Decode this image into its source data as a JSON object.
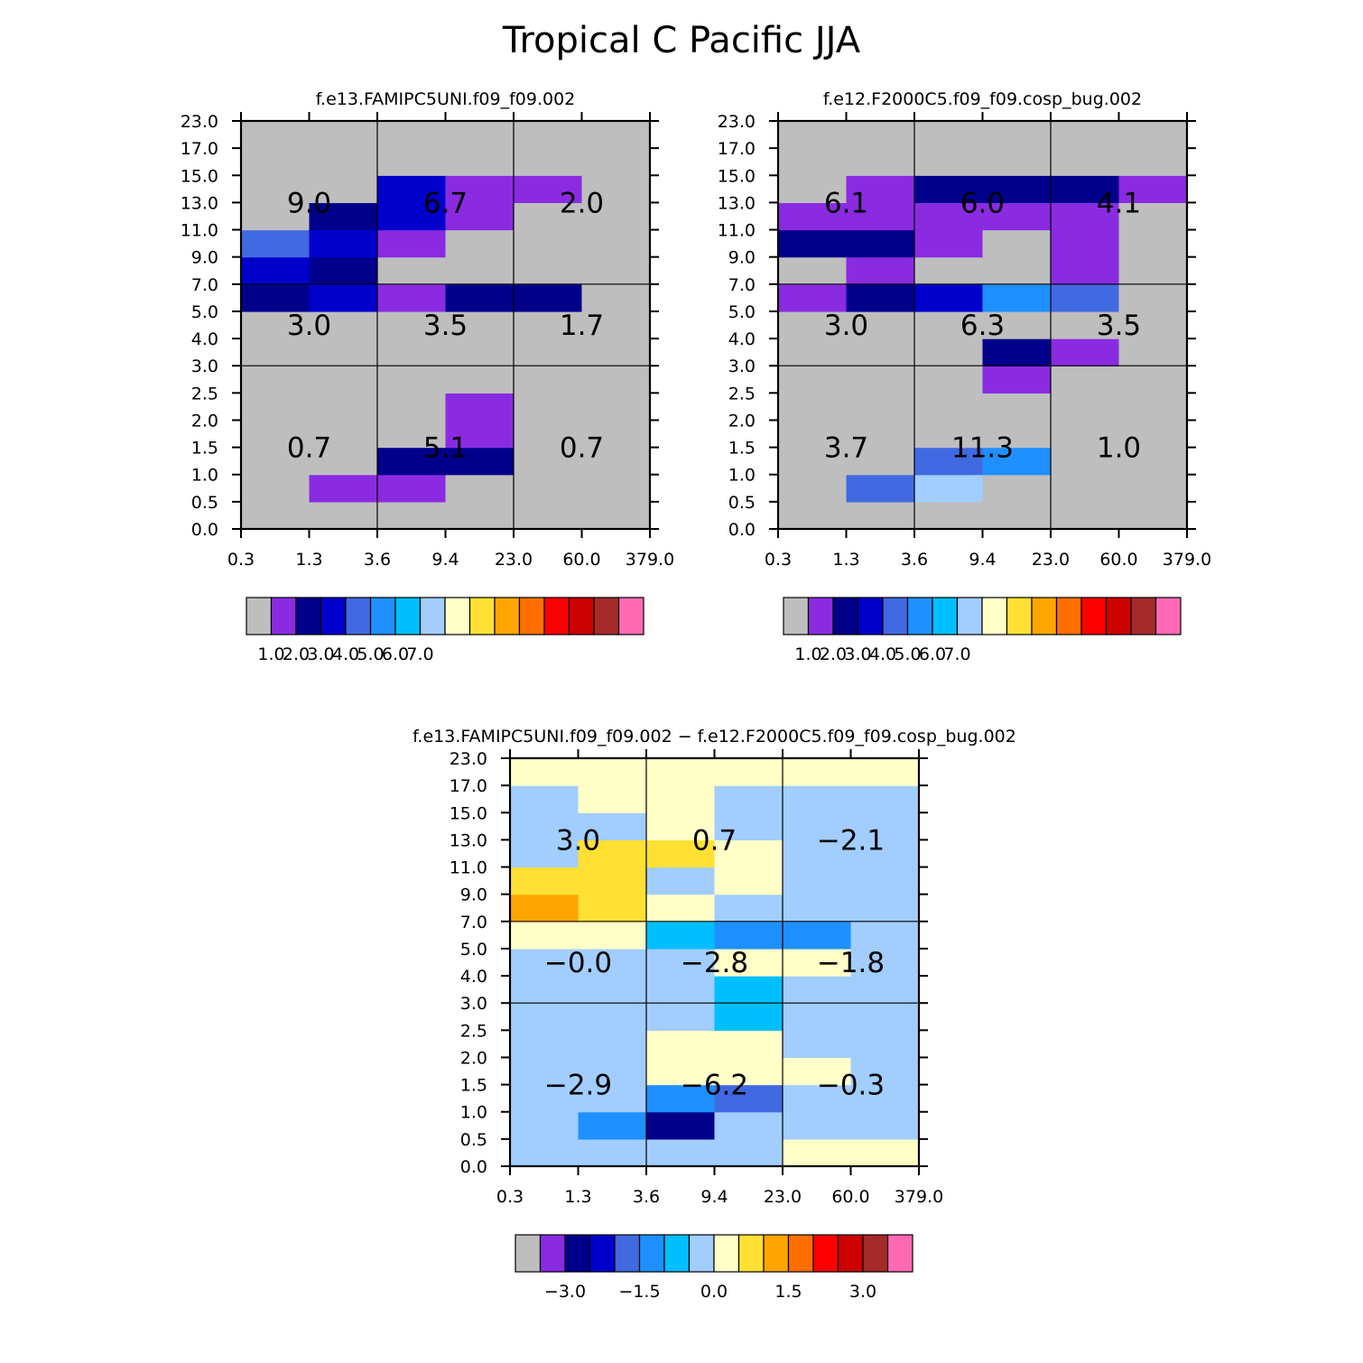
{
  "title": "Tropical C Pacific JJA",
  "palette": [
    "#bebebe",
    "#8a2be2",
    "#00008b",
    "#0000cd",
    "#4169e1",
    "#1e90ff",
    "#00bfff",
    "#a2cdff",
    "#ffffc8",
    "#ffe033",
    "#ffa500",
    "#ff6f00",
    "#ff0000",
    "#cd0000",
    "#a52a2a",
    "#ff69b4"
  ],
  "chart_data": [
    {
      "type": "heatmap",
      "title": "f.e13.FAMIPC5UNI.f09_f09.002",
      "x_ticks": [
        "0.3",
        "1.3",
        "3.6",
        "9.4",
        "23.0",
        "60.0",
        "379.0"
      ],
      "y_ticks": [
        "0.0",
        "0.5",
        "1.0",
        "1.5",
        "2.0",
        "2.5",
        "3.0",
        "4.0",
        "5.0",
        "7.0",
        "9.0",
        "11.0",
        "13.0",
        "15.0",
        "17.0",
        "23.0"
      ],
      "cells": [
        [
          0,
          0,
          0,
          0,
          0,
          0
        ],
        [
          0,
          1,
          1,
          0,
          0,
          0
        ],
        [
          0,
          0,
          2,
          2,
          0,
          0
        ],
        [
          0,
          0,
          0,
          1,
          0,
          0
        ],
        [
          0,
          0,
          0,
          1,
          0,
          0
        ],
        [
          0,
          0,
          0,
          0,
          0,
          0
        ],
        [
          0,
          0,
          0,
          0,
          0,
          0
        ],
        [
          0,
          0,
          0,
          0,
          0,
          0
        ],
        [
          2,
          3,
          1,
          2,
          2,
          0
        ],
        [
          3,
          2,
          0,
          0,
          0,
          0
        ],
        [
          4,
          3,
          1,
          0,
          0,
          0
        ],
        [
          0,
          2,
          3,
          1,
          0,
          0
        ],
        [
          0,
          0,
          3,
          1,
          1,
          0
        ],
        [
          0,
          0,
          0,
          0,
          0,
          0
        ],
        [
          0,
          0,
          0,
          0,
          0,
          0
        ]
      ],
      "region_labels": [
        [
          "0.7",
          "5.1",
          "0.7"
        ],
        [
          "3.0",
          "3.5",
          "1.7"
        ],
        [
          "9.0",
          "6.7",
          "2.0"
        ]
      ],
      "colorbar_labels": [
        "1.0",
        "2.0",
        "3.0",
        "4.0",
        "5.0",
        "6.0",
        "7.0"
      ]
    },
    {
      "type": "heatmap",
      "title": "f.e12.F2000C5.f09_f09.cosp_bug.002",
      "x_ticks": [
        "0.3",
        "1.3",
        "3.6",
        "9.4",
        "23.0",
        "60.0",
        "379.0"
      ],
      "y_ticks": [
        "0.0",
        "0.5",
        "1.0",
        "1.5",
        "2.0",
        "2.5",
        "3.0",
        "4.0",
        "5.0",
        "7.0",
        "9.0",
        "11.0",
        "13.0",
        "15.0",
        "17.0",
        "23.0"
      ],
      "cells": [
        [
          0,
          0,
          0,
          0,
          0,
          0
        ],
        [
          0,
          4,
          7,
          0,
          0,
          0
        ],
        [
          0,
          0,
          4,
          5,
          0,
          0
        ],
        [
          0,
          0,
          0,
          0,
          0,
          0
        ],
        [
          0,
          0,
          0,
          0,
          0,
          0
        ],
        [
          0,
          0,
          0,
          1,
          0,
          0
        ],
        [
          0,
          0,
          0,
          2,
          1,
          0
        ],
        [
          0,
          0,
          0,
          0,
          0,
          0
        ],
        [
          1,
          2,
          3,
          5,
          4,
          0
        ],
        [
          0,
          1,
          0,
          0,
          1,
          0
        ],
        [
          2,
          2,
          1,
          0,
          1,
          0
        ],
        [
          1,
          1,
          1,
          1,
          1,
          0
        ],
        [
          0,
          1,
          2,
          2,
          2,
          1
        ],
        [
          0,
          0,
          0,
          0,
          0,
          0
        ],
        [
          0,
          0,
          0,
          0,
          0,
          0
        ]
      ],
      "region_labels": [
        [
          "3.7",
          "11.3",
          "1.0"
        ],
        [
          "3.0",
          "6.3",
          "3.5"
        ],
        [
          "6.1",
          "6.0",
          "4.1"
        ]
      ],
      "colorbar_labels": [
        "1.0",
        "2.0",
        "3.0",
        "4.0",
        "5.0",
        "6.0",
        "7.0"
      ]
    },
    {
      "type": "heatmap",
      "title": "f.e13.FAMIPC5UNI.f09_f09.002 − f.e12.F2000C5.f09_f09.cosp_bug.002",
      "x_ticks": [
        "0.3",
        "1.3",
        "3.6",
        "9.4",
        "23.0",
        "60.0",
        "379.0"
      ],
      "y_ticks": [
        "0.0",
        "0.5",
        "1.0",
        "1.5",
        "2.0",
        "2.5",
        "3.0",
        "4.0",
        "5.0",
        "7.0",
        "9.0",
        "11.0",
        "13.0",
        "15.0",
        "17.0",
        "23.0"
      ],
      "cells": [
        [
          7,
          7,
          7,
          7,
          8,
          8
        ],
        [
          7,
          5,
          2,
          7,
          7,
          7
        ],
        [
          7,
          7,
          5,
          4,
          7,
          7
        ],
        [
          7,
          7,
          8,
          8,
          8,
          7
        ],
        [
          7,
          7,
          8,
          8,
          7,
          7
        ],
        [
          7,
          7,
          7,
          6,
          7,
          7
        ],
        [
          7,
          7,
          7,
          6,
          7,
          7
        ],
        [
          7,
          7,
          7,
          8,
          8,
          7
        ],
        [
          8,
          8,
          6,
          5,
          5,
          7
        ],
        [
          10,
          9,
          8,
          7,
          7,
          7
        ],
        [
          9,
          9,
          7,
          8,
          7,
          7
        ],
        [
          7,
          9,
          9,
          8,
          7,
          7
        ],
        [
          7,
          7,
          8,
          7,
          7,
          7
        ],
        [
          7,
          8,
          8,
          7,
          7,
          7
        ],
        [
          8,
          8,
          8,
          8,
          8,
          8
        ]
      ],
      "region_labels": [
        [
          "−2.9",
          "−6.2",
          "−0.3"
        ],
        [
          "−0.0",
          "−2.8",
          "−1.8"
        ],
        [
          "3.0",
          "0.7",
          "−2.1"
        ]
      ],
      "colorbar_labels": [
        "−3.0",
        "−1.5",
        "0.0",
        "1.5",
        "3.0"
      ]
    }
  ]
}
